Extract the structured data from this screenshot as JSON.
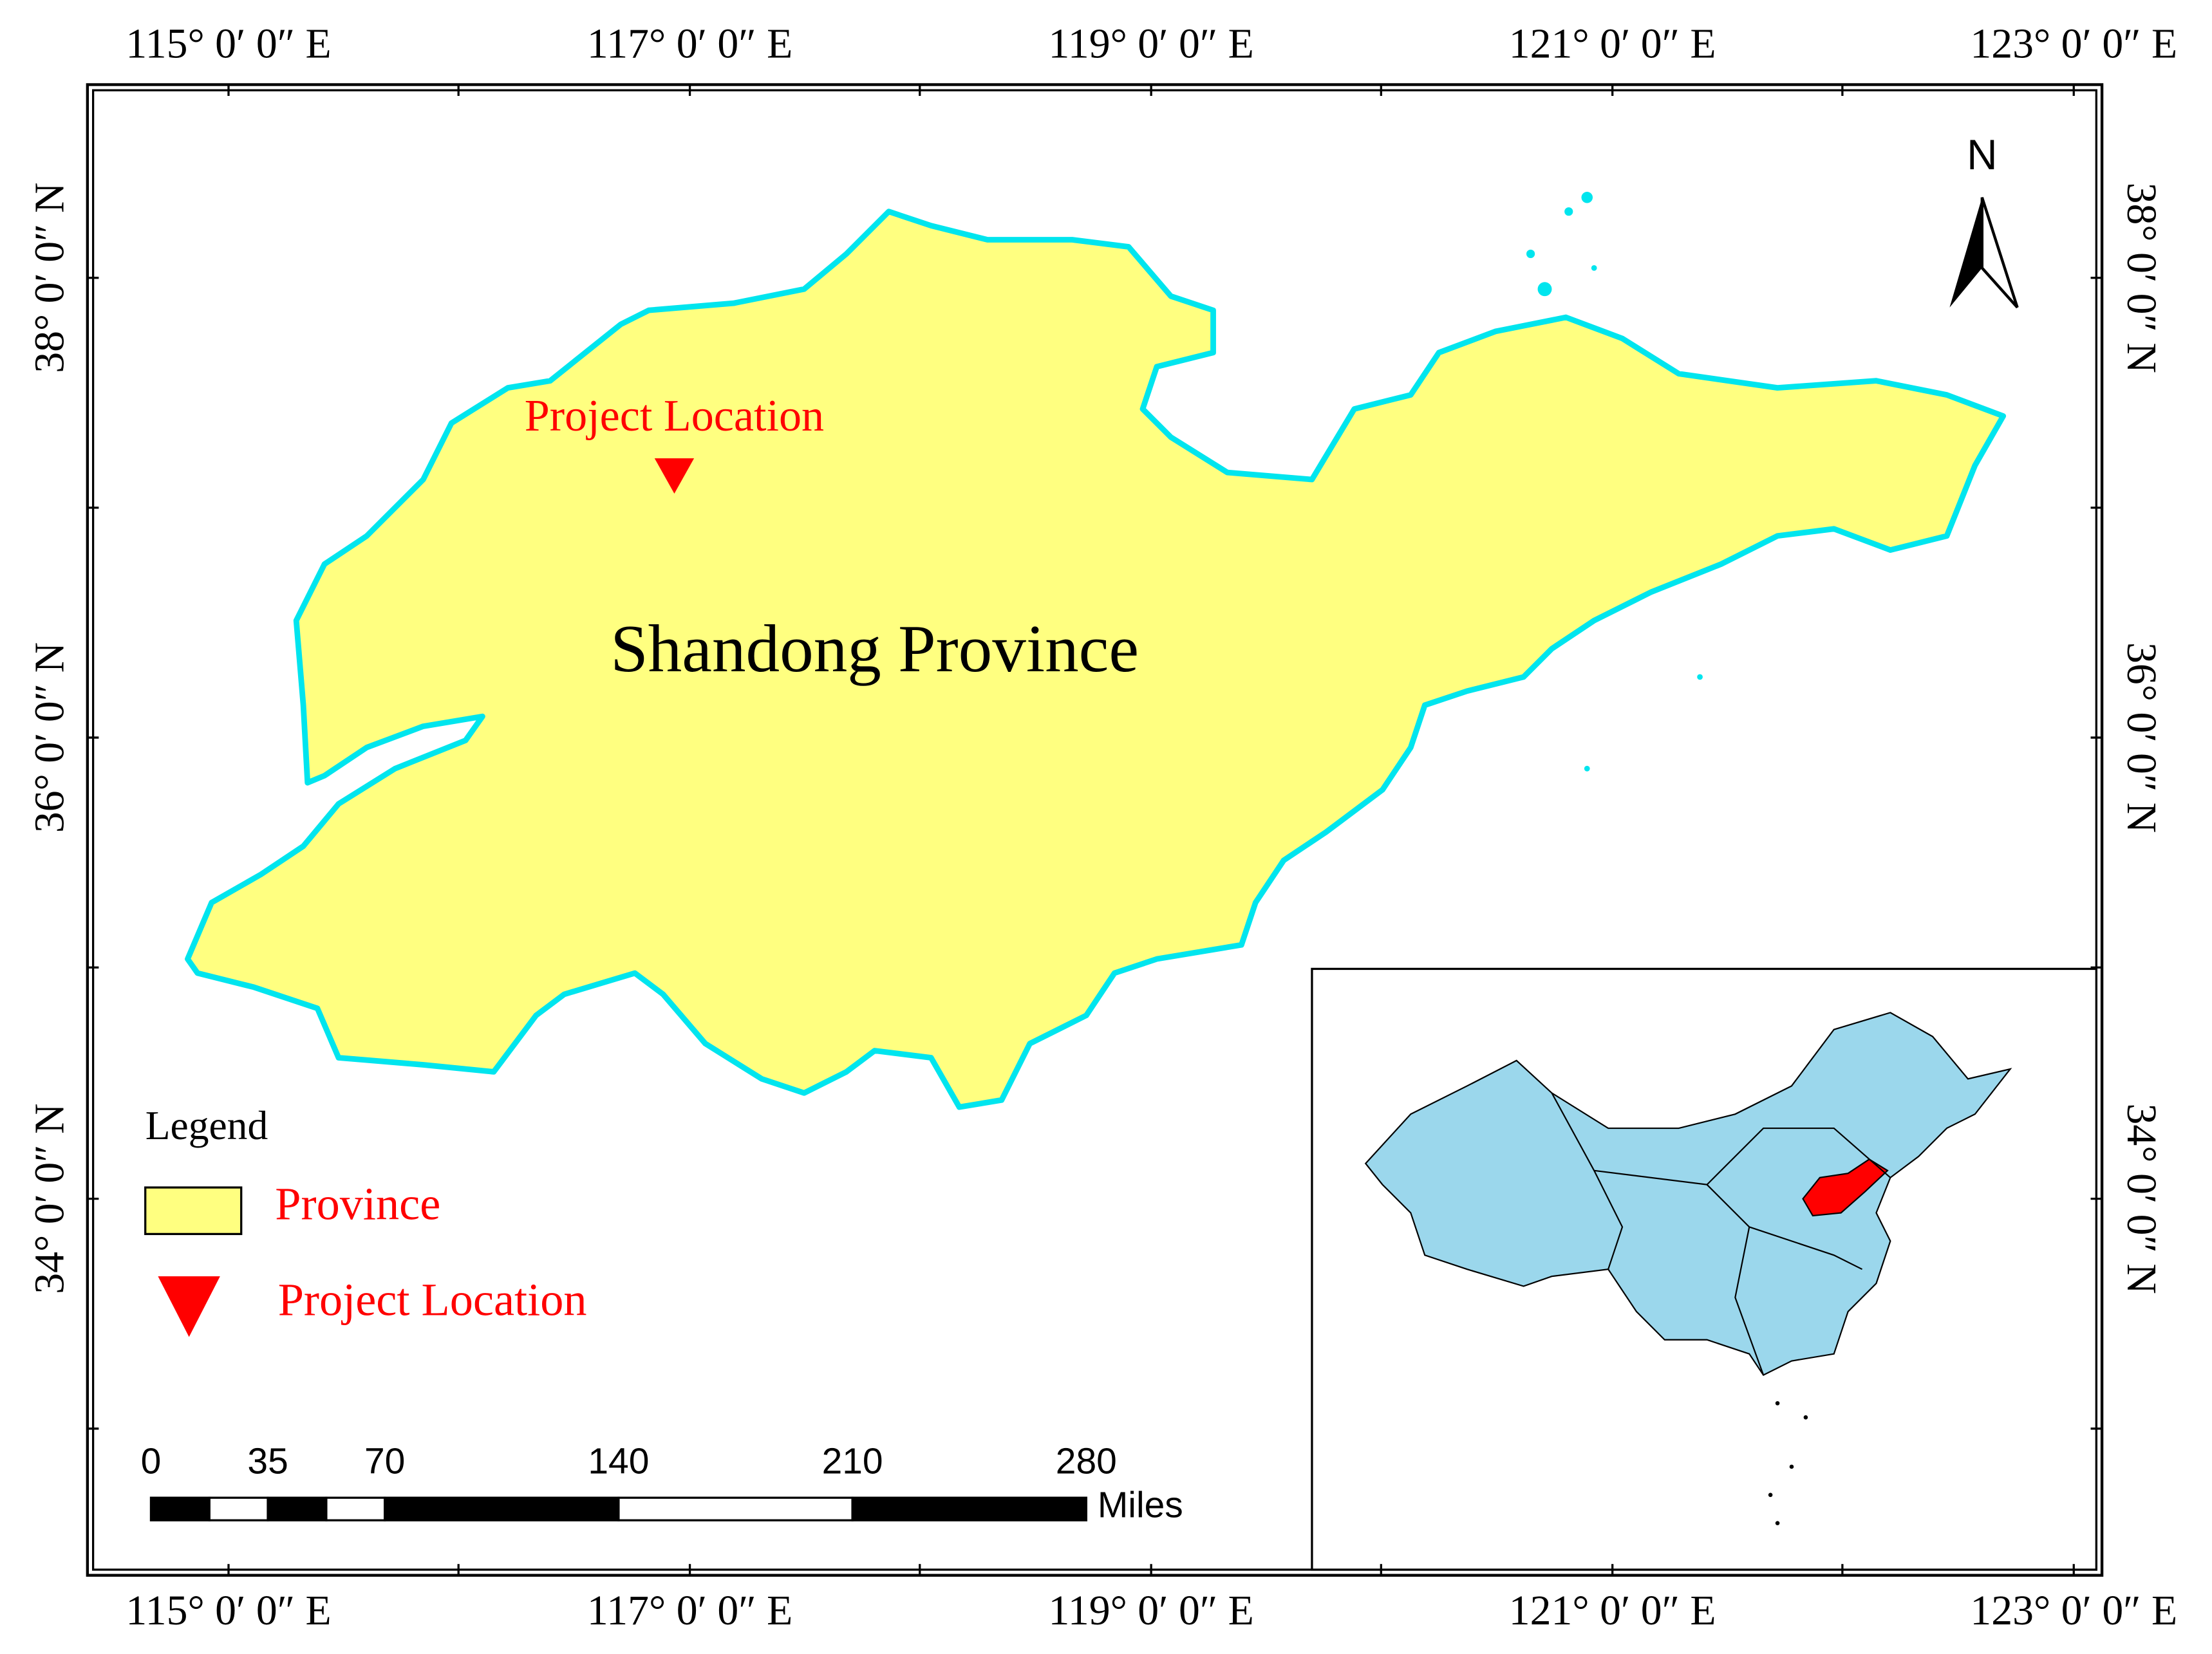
{
  "map": {
    "longitude_labels": [
      "115° 0′ 0″ E",
      "117° 0′ 0″ E",
      "119° 0′ 0″ E",
      "121° 0′ 0″ E",
      "123° 0′ 0″ E"
    ],
    "latitude_labels": [
      "38° 0′ 0″ N",
      "36° 0′ 0″ N",
      "34° 0′ 0″ N"
    ],
    "north_arrow": "N",
    "region_label": "Shandong Province",
    "marker_label": "Project Location"
  },
  "legend": {
    "title": "Legend",
    "items": [
      {
        "label": "Province"
      },
      {
        "label": "Project Location"
      }
    ]
  },
  "scale_bar": {
    "ticks": [
      "0",
      "35",
      "70",
      "140",
      "210",
      "280"
    ],
    "unit": "Miles"
  }
}
